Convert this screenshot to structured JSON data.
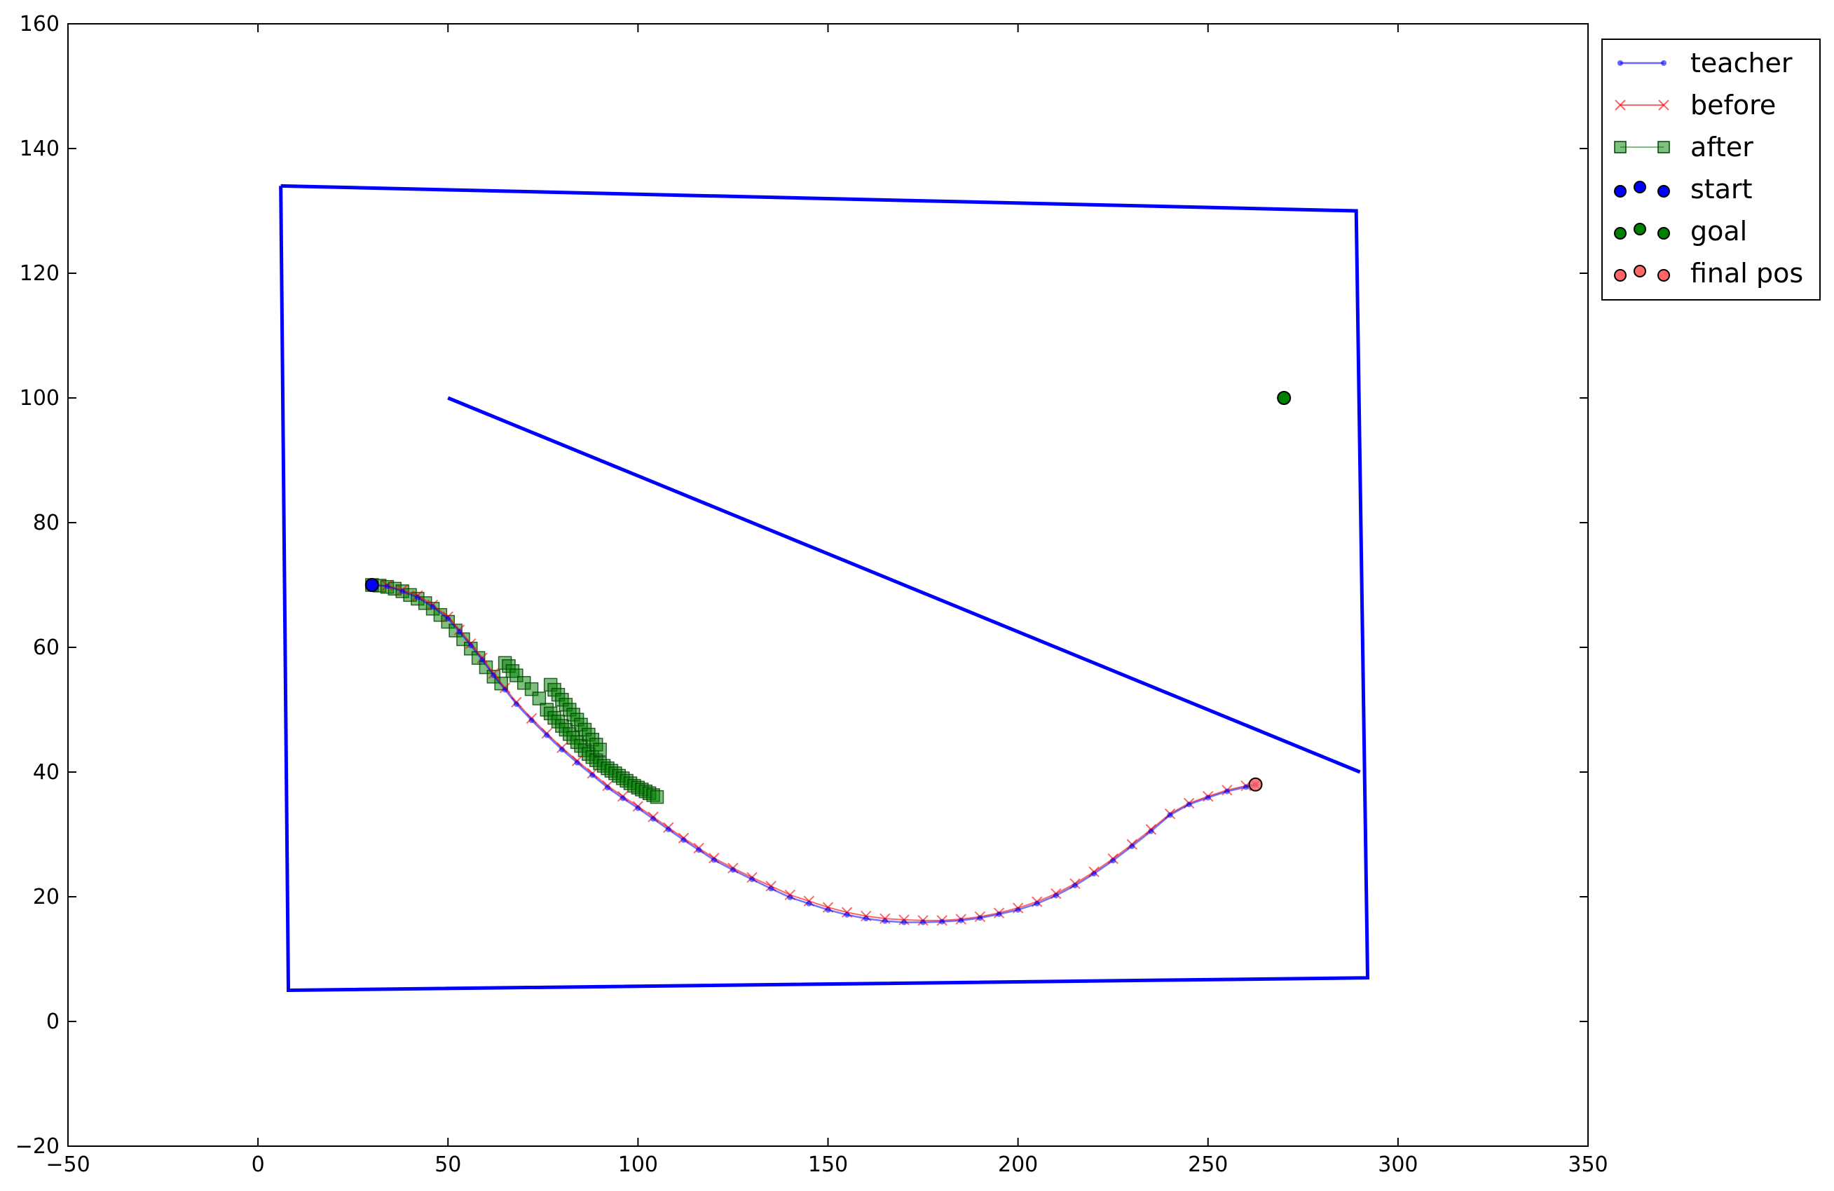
{
  "chart_data": {
    "type": "scatter",
    "title": "",
    "xlabel": "",
    "ylabel": "",
    "xlim": [
      -50,
      350
    ],
    "ylim": [
      -20,
      160
    ],
    "xticks": [
      -50,
      0,
      50,
      100,
      150,
      200,
      250,
      300,
      350
    ],
    "yticks": [
      -20,
      0,
      20,
      40,
      60,
      80,
      100,
      120,
      140,
      160
    ],
    "xtick_labels": [
      "−50",
      "0",
      "50",
      "100",
      "150",
      "200",
      "250",
      "300",
      "350"
    ],
    "ytick_labels": [
      "−20",
      "0",
      "20",
      "40",
      "60",
      "80",
      "100",
      "120",
      "140",
      "160"
    ],
    "grid": false,
    "legend_position": "outside-top-right",
    "obstacles": [
      {
        "x": [
          6,
          289,
          292,
          8,
          6
        ],
        "y": [
          134,
          130,
          7,
          5,
          134
        ]
      },
      {
        "x": [
          50,
          290
        ],
        "y": [
          100,
          40
        ]
      }
    ],
    "obstacle_color": "#0000ff",
    "series": [
      {
        "name": "teacher",
        "style": "line-dot",
        "color": "#0000ff",
        "x": [
          30,
          34,
          38,
          42,
          46,
          50,
          53,
          56,
          59,
          62,
          65,
          68,
          72,
          76,
          80,
          84,
          88,
          92,
          96,
          100,
          104,
          108,
          112,
          116,
          120,
          125,
          130,
          135,
          140,
          145,
          150,
          155,
          160,
          165,
          170,
          175,
          180,
          185,
          190,
          195,
          200,
          205,
          210,
          215,
          220,
          225,
          230,
          235,
          240,
          245,
          250,
          255,
          260,
          262.5
        ],
        "y": [
          70,
          69.8,
          69,
          68,
          66.5,
          64.6,
          62.5,
          60.3,
          58,
          55.5,
          53.2,
          50.9,
          48.3,
          45.9,
          43.6,
          41.5,
          39.5,
          37.5,
          35.8,
          34.2,
          32.5,
          30.8,
          29.1,
          27.5,
          25.9,
          24.3,
          22.8,
          21.3,
          19.9,
          18.9,
          17.9,
          17.1,
          16.5,
          16.1,
          15.9,
          15.9,
          16.0,
          16.2,
          16.6,
          17.2,
          17.9,
          18.9,
          20.2,
          21.8,
          23.7,
          25.8,
          28.1,
          30.5,
          33.1,
          34.8,
          35.9,
          36.9,
          37.6,
          38
        ]
      },
      {
        "name": "before",
        "style": "line-x",
        "color": "#ff0000",
        "x": [
          30,
          34,
          38,
          42,
          46,
          50,
          53,
          56,
          59,
          62,
          65,
          68,
          72,
          76,
          80,
          84,
          88,
          92,
          96,
          100,
          104,
          108,
          112,
          116,
          120,
          125,
          130,
          135,
          140,
          145,
          150,
          155,
          160,
          165,
          170,
          175,
          180,
          185,
          190,
          195,
          200,
          205,
          210,
          215,
          220,
          225,
          230,
          235,
          240,
          245,
          250,
          255,
          260,
          262.5
        ],
        "y": [
          70,
          69.9,
          69.2,
          68.3,
          66.8,
          64.9,
          62.8,
          60.6,
          58.3,
          55.8,
          53.5,
          51.2,
          48.6,
          46.2,
          43.9,
          41.8,
          39.8,
          37.8,
          36.1,
          34.5,
          32.8,
          31.1,
          29.4,
          27.8,
          26.2,
          24.6,
          23.1,
          21.7,
          20.3,
          19.3,
          18.3,
          17.5,
          16.9,
          16.5,
          16.3,
          16.2,
          16.2,
          16.4,
          16.8,
          17.4,
          18.2,
          19.2,
          20.5,
          22.1,
          24.0,
          26.1,
          28.4,
          30.8,
          33.3,
          35.0,
          36.1,
          37.1,
          37.8,
          38
        ]
      },
      {
        "name": "after",
        "style": "line-square",
        "color": "#008000",
        "x": [
          30,
          32,
          34,
          36,
          38,
          40,
          42,
          44,
          46,
          48,
          50,
          52,
          54,
          56,
          58,
          60,
          62,
          64,
          65,
          66,
          67,
          68,
          70,
          72,
          74,
          76,
          77,
          78,
          79,
          80,
          81,
          82,
          83,
          84,
          85,
          86,
          87,
          88,
          89,
          90,
          91,
          92,
          93,
          94,
          95,
          96,
          97,
          98,
          99,
          100,
          101,
          102,
          103,
          104,
          105,
          77,
          78,
          79,
          80,
          81,
          82,
          83,
          84,
          85,
          86,
          87,
          88,
          89,
          90
        ],
        "y": [
          70,
          69.9,
          69.7,
          69.4,
          69,
          68.4,
          67.8,
          67.1,
          66.2,
          65.2,
          64.1,
          62.7,
          61.3,
          59.8,
          58.3,
          56.8,
          55.3,
          54.2,
          57.5,
          57,
          56.2,
          55.5,
          54.3,
          53.3,
          51.8,
          50,
          49.4,
          48.7,
          48.1,
          47.4,
          46.8,
          46.1,
          45.5,
          44.8,
          44.2,
          43.5,
          42.9,
          42.4,
          41.9,
          41.4,
          41.0,
          40.6,
          40.2,
          39.8,
          39.4,
          39.0,
          38.6,
          38.2,
          37.8,
          37.5,
          37.2,
          36.9,
          36.6,
          36.3,
          36.0,
          54,
          53.2,
          52.4,
          51.6,
          50.8,
          50.0,
          49.2,
          48.4,
          47.6,
          46.8,
          46.0,
          45.2,
          44.4,
          43.6
        ]
      },
      {
        "name": "start",
        "style": "marker",
        "color": "#0000ff",
        "x": [
          30
        ],
        "y": [
          70
        ]
      },
      {
        "name": "goal",
        "style": "marker",
        "color": "#008000",
        "x": [
          270
        ],
        "y": [
          100
        ]
      },
      {
        "name": "final pos",
        "style": "marker",
        "color": "#ff6666",
        "x": [
          262.5
        ],
        "y": [
          38
        ]
      }
    ]
  }
}
